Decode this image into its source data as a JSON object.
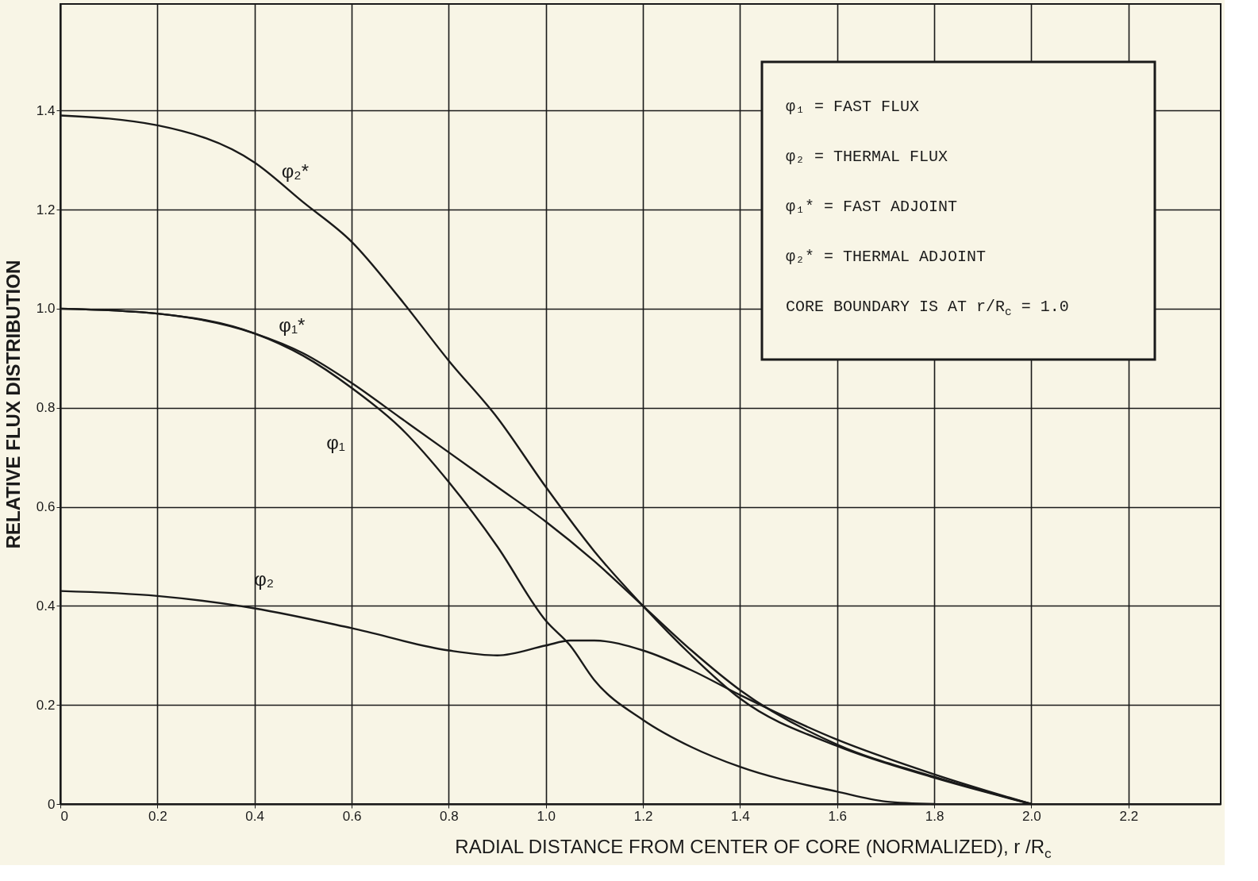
{
  "chart_data": {
    "type": "line",
    "xlabel": "RADIAL DISTANCE FROM CENTER OF CORE (NORMALIZED), r /R$_{c}$",
    "ylabel": "RELATIVE  FLUX  DISTRIBUTION",
    "xlim": [
      0,
      2.39
    ],
    "ylim": [
      0,
      1.615
    ],
    "xticks": [
      {
        "value": 0,
        "label": "0"
      },
      0.2,
      0.4,
      0.6,
      0.8,
      {
        "value": 1,
        "label": "1.0"
      },
      1.2,
      1.4,
      1.6,
      1.8,
      {
        "value": 2,
        "label": "2.0"
      },
      2.2
    ],
    "yticks": [
      {
        "value": 0,
        "label": "0"
      },
      0.2,
      0.4,
      0.6,
      0.8,
      {
        "value": 1,
        "label": "1.0"
      },
      1.2,
      1.4
    ],
    "grid": true,
    "line_style": "solid",
    "series": [
      {
        "name": "φ₂*",
        "color": "#1a1a1a",
        "x": [
          0,
          0.2,
          0.4,
          0.5,
          0.6,
          0.7,
          0.8,
          0.9,
          1.0,
          1.1,
          1.2,
          1.3,
          1.4,
          1.6,
          1.8,
          2.0
        ],
        "values": [
          1.39,
          1.37,
          1.295,
          1.215,
          1.135,
          1.02,
          0.895,
          0.78,
          0.64,
          0.51,
          0.4,
          0.3,
          0.213,
          0.117,
          0.053,
          0
        ]
      },
      {
        "name": "φ₁*",
        "color": "#1a1a1a",
        "x": [
          0,
          0.2,
          0.4,
          0.5,
          0.6,
          0.7,
          0.8,
          0.9,
          1.0,
          1.1,
          1.2,
          1.3,
          1.4,
          1.6,
          1.8,
          2.0
        ],
        "values": [
          1.0,
          0.99,
          0.95,
          0.91,
          0.85,
          0.78,
          0.71,
          0.64,
          0.57,
          0.49,
          0.4,
          0.31,
          0.23,
          0.12,
          0.055,
          0
        ]
      },
      {
        "name": "φ₁",
        "color": "#1a1a1a",
        "x": [
          0,
          0.2,
          0.4,
          0.5,
          0.6,
          0.7,
          0.8,
          0.9,
          1.0,
          1.05,
          1.1,
          1.2,
          1.3,
          1.4,
          1.6,
          1.7,
          1.8
        ],
        "values": [
          1.0,
          0.99,
          0.95,
          0.905,
          0.84,
          0.76,
          0.65,
          0.52,
          0.37,
          0.32,
          0.25,
          0.17,
          0.115,
          0.075,
          0.025,
          0.005,
          0
        ]
      },
      {
        "name": "φ₂",
        "color": "#1a1a1a",
        "x": [
          0,
          0.2,
          0.4,
          0.6,
          0.8,
          0.9,
          1.0,
          1.05,
          1.1,
          1.2,
          1.3,
          1.4,
          1.6,
          1.8,
          2.0
        ],
        "values": [
          0.43,
          0.42,
          0.395,
          0.355,
          0.31,
          0.3,
          0.32,
          0.33,
          0.33,
          0.31,
          0.27,
          0.22,
          0.13,
          0.06,
          0
        ]
      }
    ],
    "annotations": [
      "φ₁ = FAST FLUX",
      "φ₂ = THERMAL FLUX",
      "φ₁* = FAST ADJOINT",
      "φ₂* = THERMAL ADJOINT",
      "CORE BOUNDARY IS AT r/R$_{c}$ = 1.0"
    ]
  }
}
